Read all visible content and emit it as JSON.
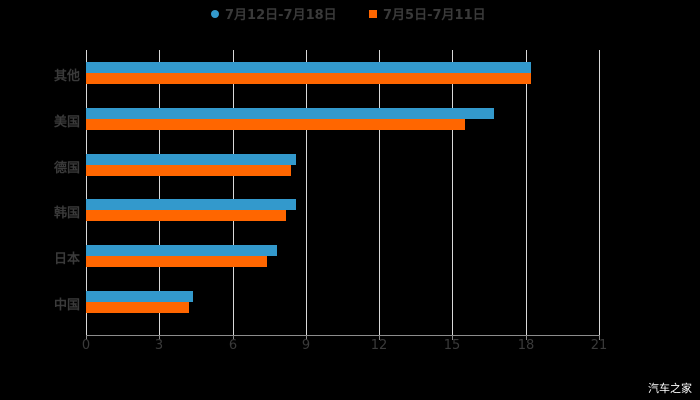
{
  "chart_data": {
    "type": "bar",
    "orientation": "horizontal",
    "title": "",
    "xlabel": "",
    "ylabel": "",
    "xlim": [
      0,
      21
    ],
    "x_ticks": [
      0,
      3,
      6,
      9,
      12,
      15,
      18,
      21
    ],
    "grid": true,
    "legend_position": "top",
    "categories": [
      "其他",
      "美国",
      "德国",
      "韩国",
      "日本",
      "中国"
    ],
    "series": [
      {
        "name": "7月12日-7月18日",
        "color": "#3399cc",
        "marker": "circle",
        "values": [
          18.2,
          16.7,
          8.6,
          8.6,
          7.8,
          4.4
        ]
      },
      {
        "name": "7月5日-7月11日",
        "color": "#ff6600",
        "marker": "square",
        "values": [
          18.2,
          15.5,
          8.4,
          8.2,
          7.4,
          4.2
        ]
      }
    ]
  },
  "legend": {
    "series_a": "7月12日-7月18日",
    "series_b": "7月5日-7月11日"
  },
  "axis": {
    "ticks": [
      "0",
      "3",
      "6",
      "9",
      "12",
      "15",
      "18",
      "21"
    ]
  },
  "categories": [
    "其他",
    "美国",
    "德国",
    "韩国",
    "日本",
    "中国"
  ],
  "watermark": "汽车之家"
}
